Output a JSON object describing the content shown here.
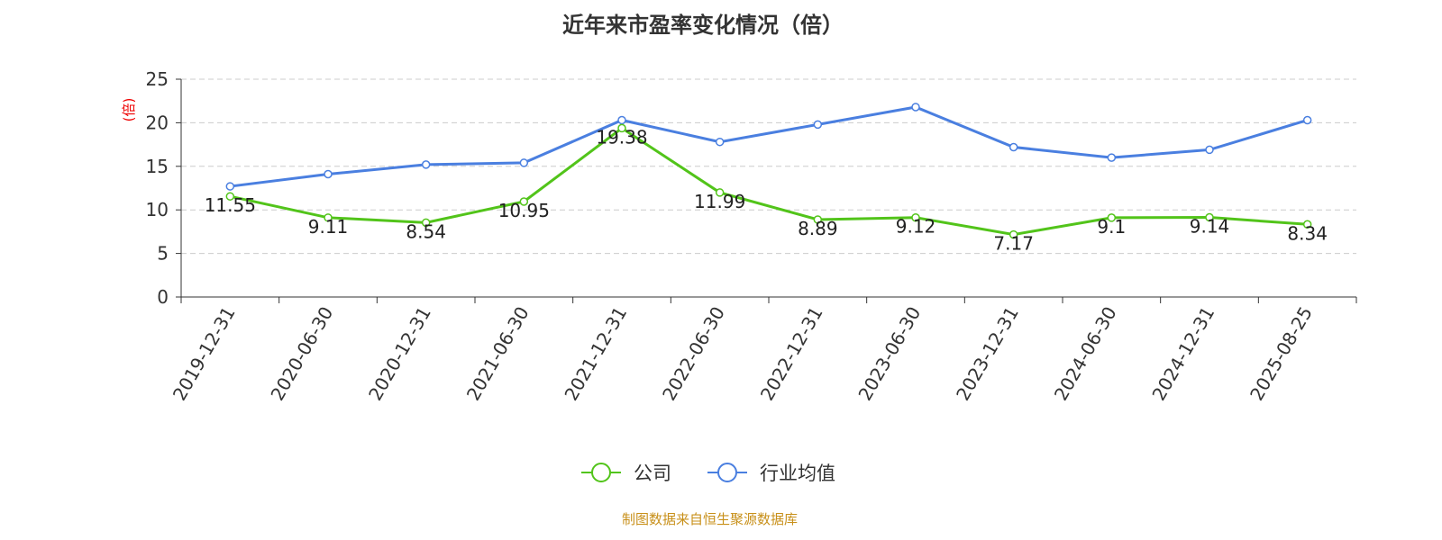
{
  "chart_data": {
    "type": "line",
    "title": "近年来市盈率变化情况（倍）",
    "ylabel": "(倍)",
    "xlabel": "",
    "ylim": [
      0,
      25
    ],
    "yticks": [
      0,
      5,
      10,
      15,
      20,
      25
    ],
    "grid": true,
    "legend_position": "bottom-center",
    "categories": [
      "2019-12-31",
      "2020-06-30",
      "2020-12-31",
      "2021-06-30",
      "2021-12-31",
      "2022-06-30",
      "2022-12-31",
      "2023-06-30",
      "2023-12-31",
      "2024-06-30",
      "2024-12-31",
      "2025-08-25"
    ],
    "series": [
      {
        "name": "公司",
        "color": "#52c41a",
        "values": [
          11.55,
          9.11,
          8.54,
          10.95,
          19.38,
          11.99,
          8.89,
          9.12,
          7.17,
          9.1,
          9.14,
          8.34
        ],
        "labels": [
          "11.55",
          "9.11",
          "8.54",
          "10.95",
          "19.38",
          "11.99",
          "8.89",
          "9.12",
          "7.17",
          "9.1",
          "9.14",
          "8.34"
        ]
      },
      {
        "name": "行业均值",
        "color": "#4a7fe0",
        "values": [
          12.7,
          14.1,
          15.2,
          15.4,
          20.3,
          17.8,
          19.8,
          21.8,
          17.2,
          16.0,
          16.9,
          20.3
        ]
      }
    ]
  },
  "source": "制图数据来自恒生聚源数据库"
}
